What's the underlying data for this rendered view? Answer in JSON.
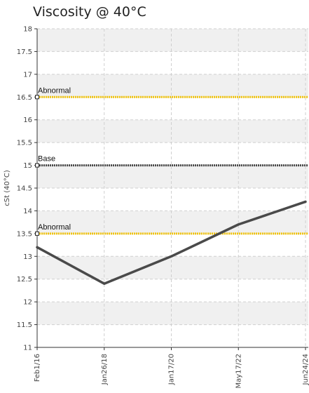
{
  "chart_data": {
    "type": "line",
    "title": "Viscosity @ 40°C",
    "ylabel": "cSt (40°C)",
    "xlabel": "",
    "ylim": [
      11,
      18
    ],
    "ytick_step": 0.5,
    "categories": [
      "Feb1/16",
      "Jan26/18",
      "Jan17/20",
      "May17/22",
      "Jun24/24"
    ],
    "series": [
      {
        "values": [
          13.2,
          12.4,
          13.0,
          13.7,
          14.2
        ],
        "color": "#4a4a4a"
      }
    ],
    "reference_lines": [
      {
        "label": "Abnormal",
        "value": 16.5,
        "color": "#f1c40f",
        "style": "dotted"
      },
      {
        "label": "Base",
        "value": 15.0,
        "color": "#4a4a4a",
        "style": "dotted"
      },
      {
        "label": "Abnormal",
        "value": 13.5,
        "color": "#f1c40f",
        "style": "dotted"
      }
    ],
    "grid": true,
    "band_colors": [
      "#f0f0f0",
      "#ffffff"
    ]
  }
}
